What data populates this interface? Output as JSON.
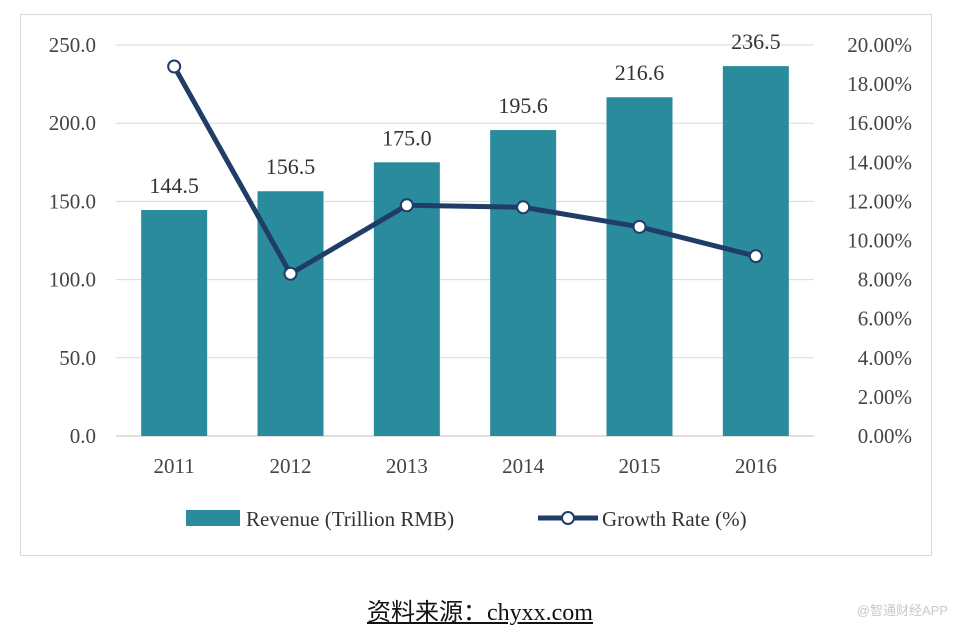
{
  "chart_data": {
    "type": "bar+line",
    "categories": [
      "2011",
      "2012",
      "2013",
      "2014",
      "2015",
      "2016"
    ],
    "series": [
      {
        "name": "Revenue (Trillion RMB)",
        "type": "bar",
        "axis": "left",
        "values": [
          144.5,
          156.5,
          175.0,
          195.6,
          216.6,
          236.5
        ],
        "labels": [
          "144.5",
          "156.5",
          "175.0",
          "195.6",
          "216.6",
          "236.5"
        ],
        "color": "#2a8b9c"
      },
      {
        "name": "Growth Rate (%)",
        "type": "line",
        "axis": "right",
        "values": [
          18.9,
          8.3,
          11.8,
          11.7,
          10.7,
          9.2
        ],
        "color": "#1f3d66"
      }
    ],
    "y_left": {
      "min": 0,
      "max": 250,
      "ticks": [
        "0.0",
        "50.0",
        "100.0",
        "150.0",
        "200.0",
        "250.0"
      ]
    },
    "y_right": {
      "min": 0,
      "max": 20,
      "ticks": [
        "0.00%",
        "2.00%",
        "4.00%",
        "6.00%",
        "8.00%",
        "10.00%",
        "12.00%",
        "14.00%",
        "16.00%",
        "18.00%",
        "20.00%"
      ]
    },
    "legend_position": "bottom",
    "grid": true
  },
  "source_text": "资料来源：chyxx.com",
  "watermark_text": "@智通财经APP"
}
